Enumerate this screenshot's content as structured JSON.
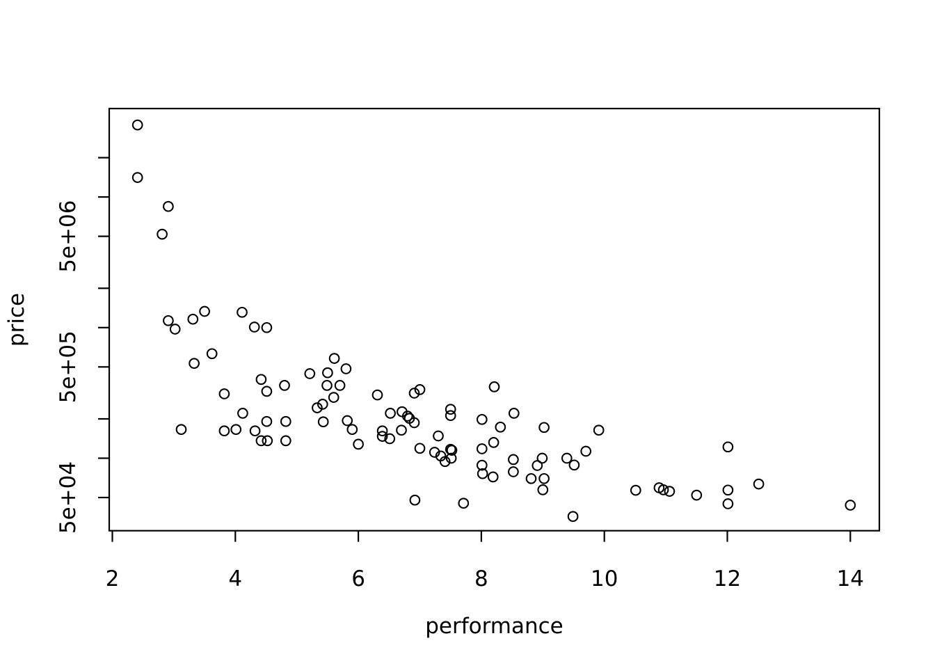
{
  "chart_data": {
    "type": "scatter",
    "title": "",
    "xlabel": "performance",
    "ylabel": "price",
    "marker": "open-circle",
    "colors": {
      "stroke": "#000000",
      "background": "#ffffff"
    },
    "x_axis": {
      "scale": "linear",
      "ticks": [
        2,
        4,
        6,
        8,
        10,
        12,
        14
      ],
      "tick_labels": [
        "2",
        "4",
        "6",
        "8",
        "10",
        "12",
        "14"
      ],
      "xlim": [
        1.95,
        14.47
      ]
    },
    "y_axis": {
      "scale": "log",
      "ylim": [
        28000,
        47500000
      ],
      "ticks": [
        {
          "value": 20000000,
          "label": ""
        },
        {
          "value": 10000000,
          "label": ""
        },
        {
          "value": 5000000,
          "label": "5e+06"
        },
        {
          "value": 2000000,
          "label": ""
        },
        {
          "value": 1000000,
          "label": ""
        },
        {
          "value": 500000,
          "label": "5e+05"
        },
        {
          "value": 200000,
          "label": ""
        },
        {
          "value": 100000,
          "label": ""
        },
        {
          "value": 50000,
          "label": "5e+04"
        }
      ]
    },
    "grid": false,
    "legend": null,
    "points": [
      [
        2.41,
        35600000
      ],
      [
        2.41,
        14100000
      ],
      [
        2.91,
        8460000
      ],
      [
        2.81,
        5190000
      ],
      [
        2.91,
        1130000
      ],
      [
        3.02,
        973000
      ],
      [
        3.31,
        1160000
      ],
      [
        3.5,
        1330000
      ],
      [
        4.11,
        1310000
      ],
      [
        4.31,
        1010000
      ],
      [
        4.51,
        1000000
      ],
      [
        3.62,
        631000
      ],
      [
        3.33,
        532000
      ],
      [
        5.21,
        444000
      ],
      [
        5.61,
        581000
      ],
      [
        5.5,
        451000
      ],
      [
        5.8,
        484000
      ],
      [
        4.42,
        401000
      ],
      [
        4.51,
        325000
      ],
      [
        4.8,
        361000
      ],
      [
        5.49,
        361000
      ],
      [
        5.7,
        361000
      ],
      [
        5.6,
        292000
      ],
      [
        5.33,
        243000
      ],
      [
        5.42,
        259000
      ],
      [
        3.82,
        311000
      ],
      [
        4.12,
        221000
      ],
      [
        3.12,
        166000
      ],
      [
        3.82,
        162000
      ],
      [
        4.01,
        166000
      ],
      [
        4.32,
        162000
      ],
      [
        4.42,
        136000
      ],
      [
        4.52,
        136000
      ],
      [
        4.82,
        136000
      ],
      [
        4.51,
        191000
      ],
      [
        4.82,
        191000
      ],
      [
        5.43,
        190000
      ],
      [
        5.82,
        194000
      ],
      [
        5.9,
        166000
      ],
      [
        6.0,
        128000
      ],
      [
        6.31,
        305000
      ],
      [
        6.91,
        315000
      ],
      [
        7.0,
        335000
      ],
      [
        8.21,
        352000
      ],
      [
        6.52,
        221000
      ],
      [
        6.71,
        227000
      ],
      [
        6.8,
        210000
      ],
      [
        6.83,
        202000
      ],
      [
        6.91,
        187000
      ],
      [
        6.39,
        162000
      ],
      [
        6.39,
        147000
      ],
      [
        6.51,
        141000
      ],
      [
        6.7,
        164000
      ],
      [
        7.0,
        119000
      ],
      [
        7.3,
        148000
      ],
      [
        7.24,
        111000
      ],
      [
        7.34,
        104000
      ],
      [
        7.41,
        94300
      ],
      [
        7.51,
        100000
      ],
      [
        7.5,
        117000
      ],
      [
        7.52,
        115000
      ],
      [
        7.5,
        237000
      ],
      [
        7.5,
        212000
      ],
      [
        8.01,
        198000
      ],
      [
        8.31,
        173000
      ],
      [
        8.01,
        118000
      ],
      [
        8.2,
        132000
      ],
      [
        8.01,
        88300
      ],
      [
        8.02,
        76200
      ],
      [
        8.19,
        71900
      ],
      [
        8.53,
        221000
      ],
      [
        8.52,
        97700
      ],
      [
        8.52,
        78700
      ],
      [
        8.99,
        100000
      ],
      [
        8.91,
        87900
      ],
      [
        8.81,
        69800
      ],
      [
        9.02,
        69800
      ],
      [
        9.0,
        57300
      ],
      [
        9.02,
        172000
      ],
      [
        9.39,
        100000
      ],
      [
        9.51,
        88700
      ],
      [
        9.7,
        113000
      ],
      [
        9.91,
        164000
      ],
      [
        9.49,
        35800
      ],
      [
        6.92,
        47800
      ],
      [
        7.71,
        45200
      ],
      [
        10.51,
        56800
      ],
      [
        10.89,
        59400
      ],
      [
        10.96,
        57300
      ],
      [
        11.06,
        55800
      ],
      [
        11.5,
        52100
      ],
      [
        12.01,
        122000
      ],
      [
        12.01,
        57000
      ],
      [
        12.01,
        44800
      ],
      [
        12.51,
        63400
      ],
      [
        14.0,
        43700
      ]
    ]
  }
}
